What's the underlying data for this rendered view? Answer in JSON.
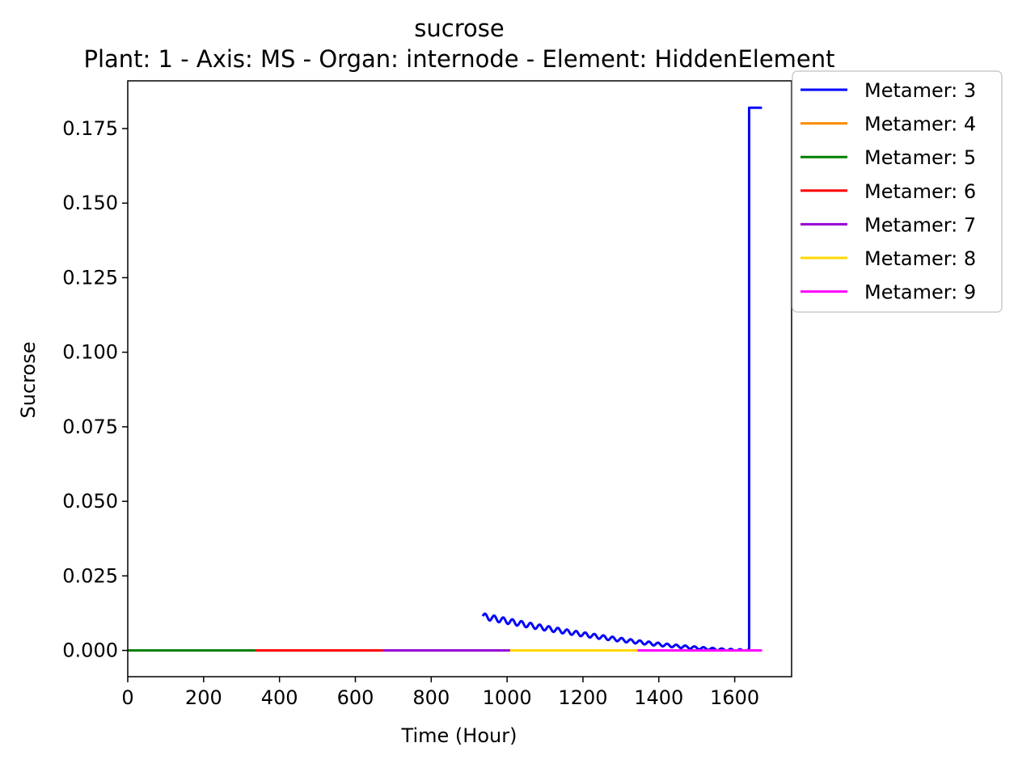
{
  "chart_data": {
    "type": "line",
    "title": "sucrose",
    "subtitle": "Plant: 1 - Axis: MS - Organ: internode - Element: HiddenElement",
    "xlabel": "Time (Hour)",
    "ylabel": "Sucrose",
    "xlim": [
      0,
      1750
    ],
    "ylim": [
      -0.0088,
      0.191
    ],
    "xticks": [
      0,
      200,
      400,
      600,
      800,
      1000,
      1200,
      1400,
      1600
    ],
    "yticks": [
      0.0,
      0.025,
      0.05,
      0.075,
      0.1,
      0.125,
      0.15,
      0.175
    ],
    "xtick_labels": [
      "0",
      "200",
      "400",
      "600",
      "800",
      "1000",
      "1200",
      "1400",
      "1600"
    ],
    "ytick_labels": [
      "0.000",
      "0.025",
      "0.050",
      "0.075",
      "0.100",
      "0.125",
      "0.150",
      "0.175"
    ],
    "grid": false,
    "legend_position": "outside-top-right",
    "series": [
      {
        "name": "Metamer: 3",
        "color": "#0000ff",
        "points": [
          [
            936,
            0.0115
          ],
          [
            1638,
            0.0
          ],
          [
            1638,
            0.182
          ],
          [
            1672,
            0.182
          ]
        ],
        "oscillation": {
          "period": 24,
          "amplitude": 0.001
        }
      },
      {
        "name": "Metamer: 4",
        "color": "#ff8c00",
        "points": [
          [
            0,
            0.0
          ],
          [
            336,
            0.0
          ]
        ]
      },
      {
        "name": "Metamer: 5",
        "color": "#008000",
        "points": [
          [
            0,
            0.0
          ],
          [
            336,
            0.0
          ]
        ]
      },
      {
        "name": "Metamer: 6",
        "color": "#ff0000",
        "points": [
          [
            336,
            0.0
          ],
          [
            672,
            0.0
          ]
        ]
      },
      {
        "name": "Metamer: 7",
        "color": "#9400d3",
        "points": [
          [
            672,
            0.0
          ],
          [
            1008,
            0.0
          ]
        ]
      },
      {
        "name": "Metamer: 8",
        "color": "#ffd700",
        "points": [
          [
            1008,
            0.0
          ],
          [
            1344,
            0.0
          ]
        ]
      },
      {
        "name": "Metamer: 9",
        "color": "#ff00ff",
        "points": [
          [
            1344,
            0.0
          ],
          [
            1672,
            0.0
          ]
        ]
      }
    ]
  }
}
